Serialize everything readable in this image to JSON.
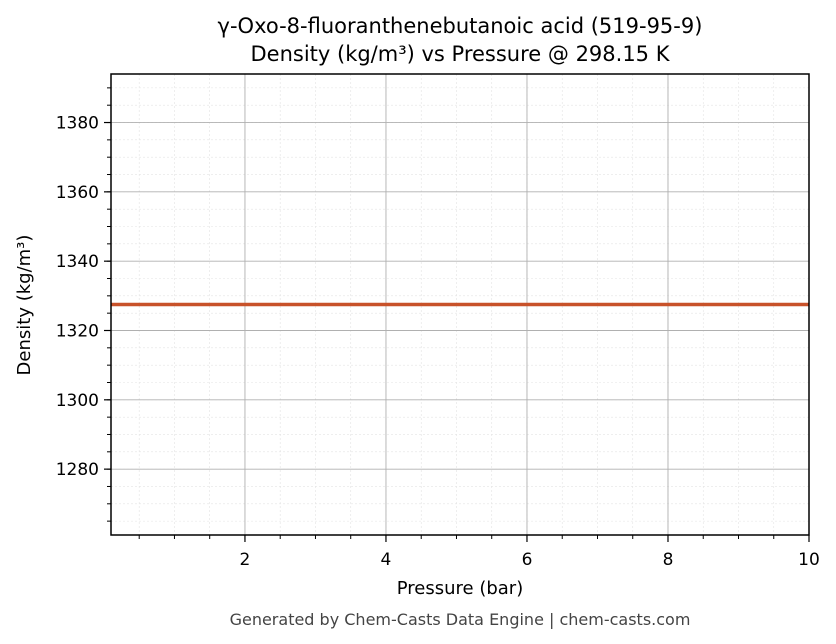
{
  "chart_data": {
    "type": "line",
    "title_line1": "γ-Oxo-8-fluoranthenebutanoic acid (519-95-9)",
    "title_line2": "Density (kg/m³) vs Pressure @ 298.15 K",
    "xlabel": "Pressure (bar)",
    "ylabel": "Density (kg/m³)",
    "xlim": [
      0.1,
      10
    ],
    "ylim": [
      1261,
      1394
    ],
    "xticks": [
      2,
      4,
      6,
      8,
      10
    ],
    "yticks": [
      1280,
      1300,
      1320,
      1340,
      1360,
      1380
    ],
    "grid": true,
    "series": [
      {
        "color": "#c8522a",
        "x": [
          0.1,
          10
        ],
        "y": [
          1327.5,
          1327.5
        ]
      }
    ]
  },
  "footer": "Generated by Chem-Casts Data Engine | chem-casts.com"
}
